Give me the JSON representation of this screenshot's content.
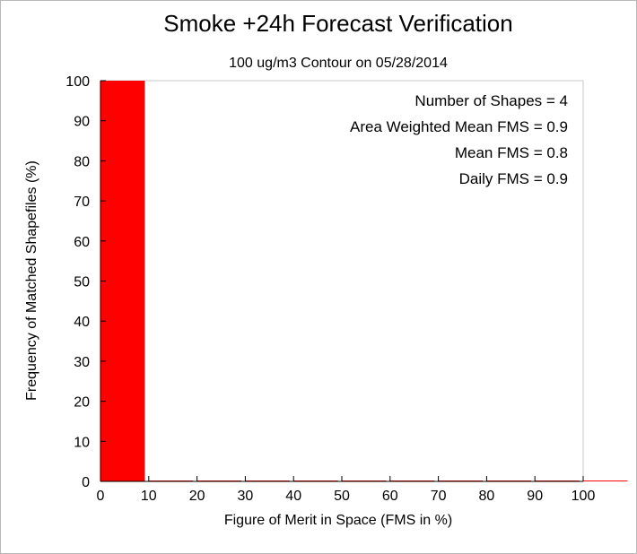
{
  "chart_data": {
    "type": "bar",
    "title": "Smoke +24h Forecast Verification",
    "subtitle": "100 ug/m3 Contour on 05/28/2014",
    "xlabel": "Figure of Merit in Space (FMS in %)",
    "ylabel": "Frequency of Matched Shapefiles (%)",
    "xlim": [
      0,
      100
    ],
    "ylim": [
      0,
      100
    ],
    "xticks": [
      0,
      10,
      20,
      30,
      40,
      50,
      60,
      70,
      80,
      90,
      100
    ],
    "yticks": [
      0,
      10,
      20,
      30,
      40,
      50,
      60,
      70,
      80,
      90,
      100
    ],
    "bin_width": 10,
    "categories": [
      "0-10",
      "10-20",
      "20-30",
      "30-40",
      "40-50",
      "50-60",
      "60-70",
      "70-80",
      "80-90",
      "90-100",
      "100+"
    ],
    "bins": [
      0,
      10,
      20,
      30,
      40,
      50,
      60,
      70,
      80,
      90,
      100
    ],
    "values": [
      100,
      0,
      0,
      0,
      0,
      0,
      0,
      0,
      0,
      0,
      0
    ],
    "bar_color": "#ff0000",
    "grid": false,
    "annotations": [
      "Number of Shapes = 4",
      "Area Weighted Mean FMS = 0.9",
      "Mean FMS = 0.8",
      "Daily FMS = 0.9"
    ],
    "annotation_position": "top-right"
  }
}
